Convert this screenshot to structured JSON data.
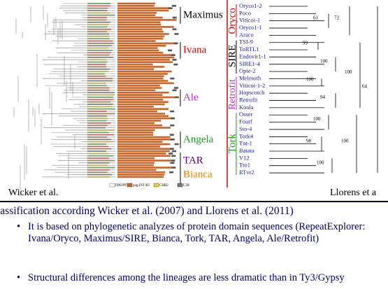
{
  "left_figure": {
    "clades": [
      "Maximus",
      "Ivana",
      "Ale",
      "Angela",
      "TAR",
      "Bianca"
    ],
    "caption": "Wicker et al.",
    "legend": [
      "FBS/PPT",
      "gag-INT-RT",
      "CHR2",
      "LTR"
    ]
  },
  "right_figure": {
    "groups": [
      "Oryco",
      "SIRE",
      "Retrofit",
      "Tork"
    ],
    "leaves": [
      "Oryco1-2",
      "Poco",
      "Viticoi-1",
      "Oryco1-1",
      "Araco",
      "TSI-9",
      "ToRTL1",
      "Endovir1-1",
      "SIRE1-4",
      "Opie-2",
      "Melmoth",
      "Viticoi-1-2",
      "Hopscotch",
      "Retrofit",
      "Koala",
      "Osser",
      "Fourf",
      "Sto-4",
      "Tork4",
      "Tnt-1",
      "Batata",
      "V12",
      "Tto1",
      "RTvr2"
    ],
    "support": [
      "61",
      "72",
      "99",
      "100",
      "100",
      "94",
      "100",
      "98",
      "100",
      "100",
      "100",
      "64"
    ],
    "caption": "Llorens et a"
  },
  "heading": "lassification according Wicker et al. (2007) and Llorens et al. (2011)",
  "bullets": [
    "It is based on phylogenetic analyzes of protein domain sequences (RepeatExplorer: Ivana/Oryco, Maximus/SIRE, Bianca, Tork, TAR, Angela, Ale/Retrofit)",
    "Structural differences among the lineages are less dramatic than in Ty3/Gypsy"
  ]
}
